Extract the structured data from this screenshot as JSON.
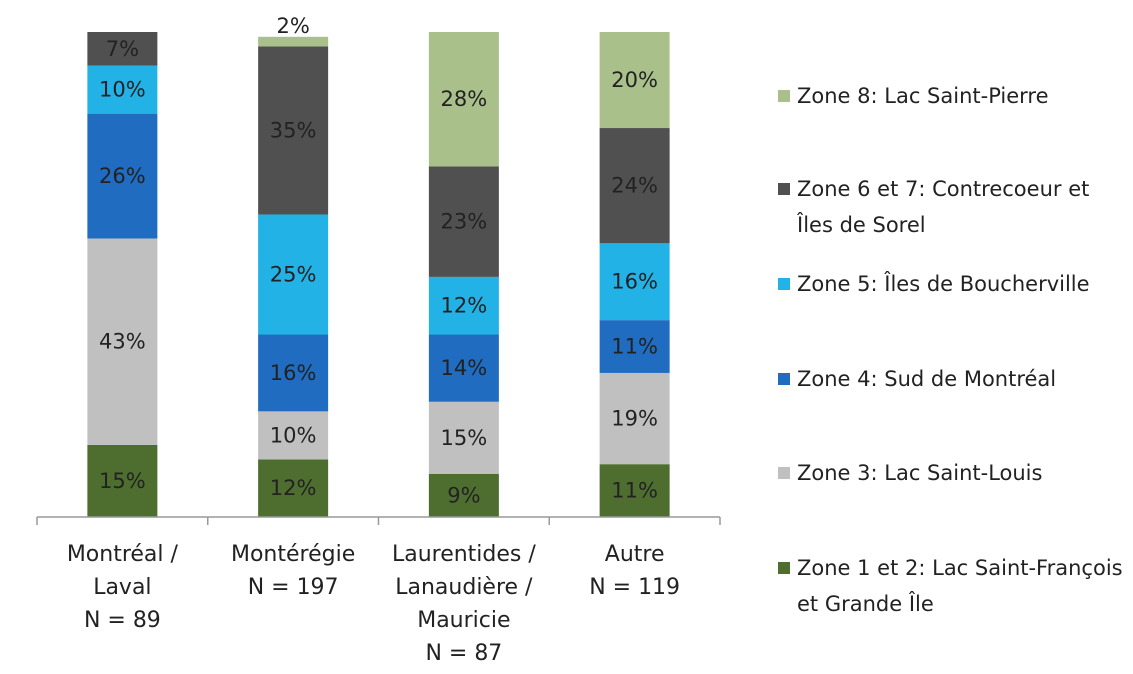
{
  "chart_data": {
    "type": "stacked_bar",
    "categories": [
      "Montréal / Laval\nN = 89",
      "Montérégie\nN = 197",
      "Laurentides / Lanaudière / Mauricie\nN = 87",
      "Autre\nN = 119"
    ],
    "ylim": [
      0,
      101
    ],
    "series": [
      {
        "name": "Zone 1 et 2: Lac Saint-François et Grande Île",
        "color": "#4e6e2f",
        "values": [
          15,
          12,
          9,
          11
        ],
        "value_labels": [
          "15%",
          "12%",
          "9%",
          "11%"
        ]
      },
      {
        "name": "Zone 3: Lac Saint-Louis",
        "color": "#c0c0c0",
        "values": [
          43,
          10,
          15,
          19
        ],
        "value_labels": [
          "43%",
          "10%",
          "15%",
          "19%"
        ]
      },
      {
        "name": "Zone 4: Sud de Montréal",
        "color": "#1f6cc0",
        "values": [
          26,
          16,
          14,
          11
        ],
        "value_labels": [
          "26%",
          "16%",
          "14%",
          "11%"
        ]
      },
      {
        "name": "Zone 5: Îles de Boucherville",
        "color": "#22b2e6",
        "values": [
          10,
          25,
          12,
          16
        ],
        "value_labels": [
          "10%",
          "25%",
          "12%",
          "16%"
        ]
      },
      {
        "name": "Zone 6 et 7: Contrecoeur et Îles de Sorel",
        "color": "#505050",
        "values": [
          7,
          35,
          23,
          24
        ],
        "value_labels": [
          "7%",
          "35%",
          "23%",
          "24%"
        ]
      },
      {
        "name": "Zone 8: Lac Saint-Pierre",
        "color": "#a9c08b",
        "values": [
          null,
          2,
          28,
          20
        ],
        "value_labels": [
          null,
          "2%",
          "28%",
          "20%"
        ]
      }
    ]
  }
}
